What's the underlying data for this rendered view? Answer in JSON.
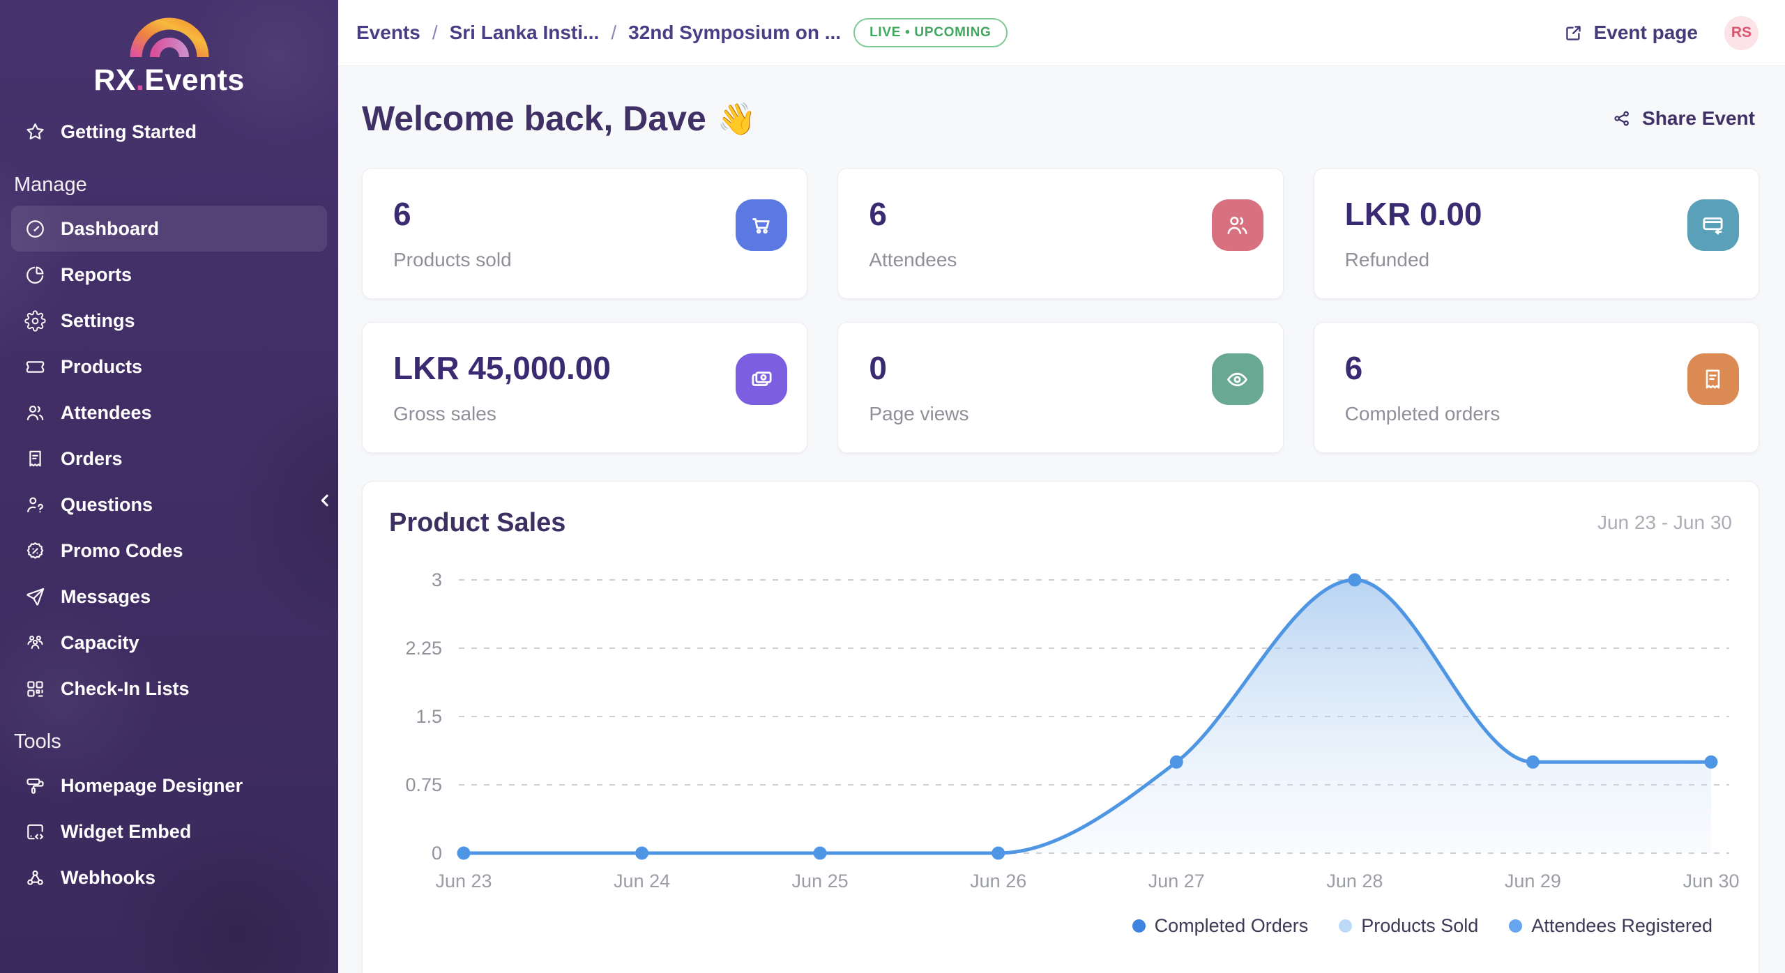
{
  "brand": {
    "prefix": "RX",
    "dot": ".",
    "suffix": "Events"
  },
  "sidebar": {
    "top_item": {
      "label": "Getting Started",
      "icon": "star-icon"
    },
    "sections": [
      {
        "label": "Manage",
        "items": [
          {
            "label": "Dashboard",
            "icon": "gauge-icon",
            "active": true
          },
          {
            "label": "Reports",
            "icon": "pie-chart-icon"
          },
          {
            "label": "Settings",
            "icon": "gear-icon"
          },
          {
            "label": "Products",
            "icon": "ticket-icon"
          },
          {
            "label": "Attendees",
            "icon": "people-icon"
          },
          {
            "label": "Orders",
            "icon": "receipt-icon"
          },
          {
            "label": "Questions",
            "icon": "person-question-icon"
          },
          {
            "label": "Promo Codes",
            "icon": "discount-badge-icon"
          },
          {
            "label": "Messages",
            "icon": "paper-plane-icon"
          },
          {
            "label": "Capacity",
            "icon": "people-group-icon"
          },
          {
            "label": "Check-In Lists",
            "icon": "qr-code-icon"
          }
        ]
      },
      {
        "label": "Tools",
        "items": [
          {
            "label": "Homepage Designer",
            "icon": "paint-roller-icon"
          },
          {
            "label": "Widget Embed",
            "icon": "widget-code-icon"
          },
          {
            "label": "Webhooks",
            "icon": "webhook-icon"
          }
        ]
      }
    ]
  },
  "topbar": {
    "breadcrumb": {
      "separator": "/",
      "items": [
        "Events",
        "Sri Lanka Insti...",
        "32nd Symposium on ..."
      ]
    },
    "status_badge": {
      "label": "LIVE • UPCOMING",
      "text_color": "#3fa75e",
      "border_color": "#7fcb97"
    },
    "event_page_label": "Event page",
    "avatar_initials": "RS"
  },
  "header": {
    "greeting": "Welcome back, Dave",
    "emoji": "👋",
    "share_label": "Share Event"
  },
  "stats": [
    {
      "value": "6",
      "label": "Products sold",
      "icon": "cart-icon",
      "tile_color": "#5b78e3"
    },
    {
      "value": "6",
      "label": "Attendees",
      "icon": "people-icon",
      "tile_color": "#d7707f"
    },
    {
      "value": "LKR 0.00",
      "label": "Refunded",
      "icon": "card-refund-icon",
      "tile_color": "#5aa0b8"
    },
    {
      "value": "LKR 45,000.00",
      "label": "Gross sales",
      "icon": "cash-icon",
      "tile_color": "#7b5fe0"
    },
    {
      "value": "0",
      "label": "Page views",
      "icon": "eye-icon",
      "tile_color": "#69a893"
    },
    {
      "value": "6",
      "label": "Completed orders",
      "icon": "receipt-icon",
      "tile_color": "#dc8a54"
    }
  ],
  "chart_data": {
    "type": "line",
    "title": "Product Sales",
    "subtitle_range": "Jun 23 - Jun 30",
    "x": [
      "Jun 23",
      "Jun 24",
      "Jun 25",
      "Jun 26",
      "Jun 27",
      "Jun 28",
      "Jun 29",
      "Jun 30"
    ],
    "series": [
      {
        "name": "Completed Orders",
        "color": "#3f83e0",
        "values": [
          0,
          0,
          0,
          0,
          1,
          3,
          1,
          1
        ]
      },
      {
        "name": "Products Sold",
        "color": "#bcdaf8",
        "values": [
          0,
          0,
          0,
          0,
          1,
          3,
          1,
          1
        ]
      },
      {
        "name": "Attendees Registered",
        "color": "#67a5ee",
        "values": [
          0,
          0,
          0,
          0,
          1,
          3,
          1,
          1
        ]
      }
    ],
    "yticks": [
      0,
      0.75,
      1.5,
      2.25,
      3
    ],
    "ylim": [
      0,
      3
    ],
    "grid": "horizontal-dashed",
    "legend_position": "bottom-right",
    "line_color": "#4e96e3",
    "curve": "smooth"
  }
}
